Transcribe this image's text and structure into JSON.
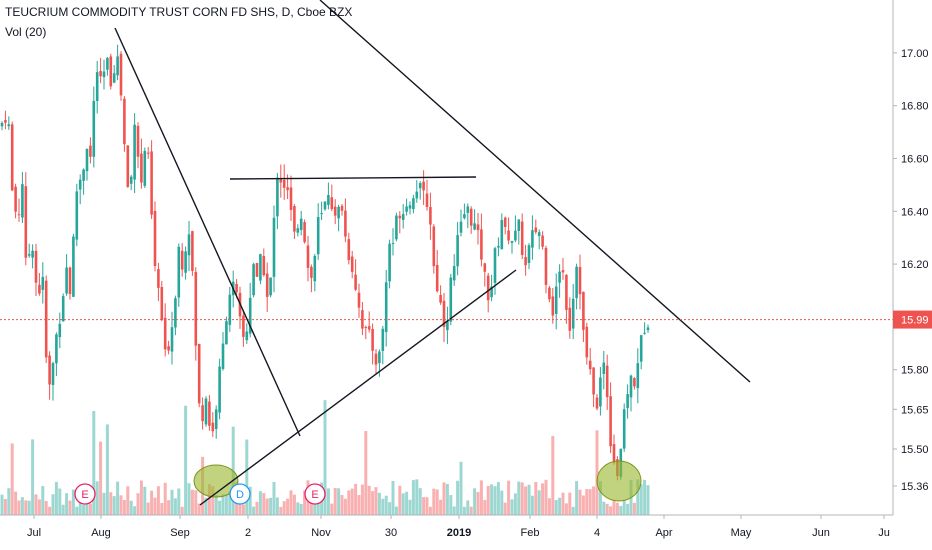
{
  "header": {
    "title": "TEUCRIUM COMMODITY TRUST CORN FD SHS, D, Cboe BZX",
    "volume_label": "Vol (20)"
  },
  "colors": {
    "up": "#26a69a",
    "down": "#ef5350",
    "price_line": "#ef5350",
    "trendline": "#131722",
    "highlight": "#9ab52a"
  },
  "chart_data": {
    "type": "candlestick",
    "ylim": [
      15.25,
      17.2
    ],
    "y_ticks": [
      17.0,
      16.8,
      16.6,
      16.4,
      16.2,
      15.99,
      15.8,
      15.65,
      15.5,
      15.36
    ],
    "y_tick_labels": [
      "17.00",
      "16.80",
      "16.60",
      "16.40",
      "16.20",
      "15.99",
      "15.80",
      "15.65",
      "15.50",
      "15.36"
    ],
    "last_price": 15.99,
    "last_price_label": "15.99",
    "x_labels": [
      "Jul",
      "Aug",
      "Sep",
      "2",
      "Nov",
      "30",
      "2019",
      "Feb",
      "4",
      "Apr",
      "May",
      "Jun",
      "Ju"
    ],
    "x_label_bold": [
      false,
      false,
      false,
      false,
      false,
      false,
      true,
      false,
      false,
      false,
      false,
      false,
      false
    ],
    "events": [
      "E",
      "D",
      "E"
    ],
    "price_path": [
      [
        0,
        16.72
      ],
      [
        8,
        16.78
      ],
      [
        12,
        16.48
      ],
      [
        18,
        16.35
      ],
      [
        22,
        16.55
      ],
      [
        26,
        16.18
      ],
      [
        32,
        16.3
      ],
      [
        38,
        16.05
      ],
      [
        42,
        16.2
      ],
      [
        46,
        15.85
      ],
      [
        50,
        15.72
      ],
      [
        56,
        15.92
      ],
      [
        62,
        16.05
      ],
      [
        66,
        16.2
      ],
      [
        70,
        16.1
      ],
      [
        74,
        16.32
      ],
      [
        78,
        16.55
      ],
      [
        82,
        16.5
      ],
      [
        86,
        16.68
      ],
      [
        90,
        16.58
      ],
      [
        94,
        16.82
      ],
      [
        98,
        16.96
      ],
      [
        102,
        16.84
      ],
      [
        106,
        17.0
      ],
      [
        110,
        16.88
      ],
      [
        114,
        16.95
      ],
      [
        118,
        16.98
      ],
      [
        122,
        16.8
      ],
      [
        126,
        16.55
      ],
      [
        130,
        16.42
      ],
      [
        134,
        16.78
      ],
      [
        138,
        16.62
      ],
      [
        142,
        16.48
      ],
      [
        146,
        16.7
      ],
      [
        150,
        16.5
      ],
      [
        154,
        16.2
      ],
      [
        158,
        16.12
      ],
      [
        162,
        15.98
      ],
      [
        166,
        15.82
      ],
      [
        170,
        15.94
      ],
      [
        174,
        16.0
      ],
      [
        178,
        16.28
      ],
      [
        182,
        16.2
      ],
      [
        186,
        16.28
      ],
      [
        190,
        16.35
      ],
      [
        194,
        16.05
      ],
      [
        198,
        15.68
      ],
      [
        202,
        15.62
      ],
      [
        206,
        15.7
      ],
      [
        210,
        15.58
      ],
      [
        214,
        15.56
      ],
      [
        218,
        15.75
      ],
      [
        222,
        15.85
      ],
      [
        226,
        16.0
      ],
      [
        230,
        16.1
      ],
      [
        234,
        16.12
      ],
      [
        238,
        16.04
      ],
      [
        242,
        15.92
      ],
      [
        246,
        15.92
      ],
      [
        250,
        16.08
      ],
      [
        254,
        16.22
      ],
      [
        258,
        16.1
      ],
      [
        262,
        16.28
      ],
      [
        266,
        16.06
      ],
      [
        270,
        16.1
      ],
      [
        274,
        16.36
      ],
      [
        278,
        16.58
      ],
      [
        282,
        16.5
      ],
      [
        286,
        16.5
      ],
      [
        290,
        16.42
      ],
      [
        294,
        16.3
      ],
      [
        298,
        16.36
      ],
      [
        302,
        16.4
      ],
      [
        306,
        16.25
      ],
      [
        310,
        16.12
      ],
      [
        314,
        16.2
      ],
      [
        318,
        16.36
      ],
      [
        322,
        16.38
      ],
      [
        326,
        16.44
      ],
      [
        330,
        16.5
      ],
      [
        334,
        16.35
      ],
      [
        338,
        16.4
      ],
      [
        342,
        16.42
      ],
      [
        346,
        16.28
      ],
      [
        350,
        16.22
      ],
      [
        354,
        16.16
      ],
      [
        358,
        16.06
      ],
      [
        362,
        15.98
      ],
      [
        366,
        15.94
      ],
      [
        370,
        15.92
      ],
      [
        374,
        15.86
      ],
      [
        378,
        15.82
      ],
      [
        382,
        15.92
      ],
      [
        386,
        16.12
      ],
      [
        390,
        16.3
      ],
      [
        394,
        16.28
      ],
      [
        398,
        16.42
      ],
      [
        402,
        16.38
      ],
      [
        406,
        16.45
      ],
      [
        410,
        16.42
      ],
      [
        414,
        16.48
      ],
      [
        418,
        16.5
      ],
      [
        422,
        16.46
      ],
      [
        426,
        16.45
      ],
      [
        430,
        16.38
      ],
      [
        434,
        16.18
      ],
      [
        438,
        16.1
      ],
      [
        442,
        16.02
      ],
      [
        446,
        15.95
      ],
      [
        450,
        16.12
      ],
      [
        454,
        16.18
      ],
      [
        458,
        16.3
      ],
      [
        462,
        16.35
      ],
      [
        466,
        16.42
      ],
      [
        470,
        16.38
      ],
      [
        474,
        16.35
      ],
      [
        478,
        16.3
      ],
      [
        482,
        16.22
      ],
      [
        486,
        16.12
      ],
      [
        490,
        16.06
      ],
      [
        494,
        16.22
      ],
      [
        498,
        16.28
      ],
      [
        502,
        16.38
      ],
      [
        506,
        16.3
      ],
      [
        510,
        16.32
      ],
      [
        514,
        16.28
      ],
      [
        518,
        16.36
      ],
      [
        522,
        16.26
      ],
      [
        526,
        16.18
      ],
      [
        530,
        16.28
      ],
      [
        534,
        16.32
      ],
      [
        538,
        16.34
      ],
      [
        542,
        16.28
      ],
      [
        546,
        16.15
      ],
      [
        550,
        16.08
      ],
      [
        554,
        16.0
      ],
      [
        558,
        16.18
      ],
      [
        562,
        16.2
      ],
      [
        566,
        16.06
      ],
      [
        570,
        15.96
      ],
      [
        574,
        16.12
      ],
      [
        578,
        16.24
      ],
      [
        582,
        15.98
      ],
      [
        586,
        15.86
      ],
      [
        590,
        15.78
      ],
      [
        594,
        15.72
      ],
      [
        598,
        15.62
      ],
      [
        602,
        15.86
      ],
      [
        606,
        15.78
      ],
      [
        610,
        15.55
      ],
      [
        614,
        15.46
      ],
      [
        618,
        15.4
      ],
      [
        622,
        15.55
      ],
      [
        626,
        15.68
      ],
      [
        630,
        15.78
      ],
      [
        634,
        15.72
      ],
      [
        638,
        15.85
      ],
      [
        642,
        15.92
      ],
      [
        646,
        15.99
      ],
      [
        650,
        15.99
      ]
    ]
  }
}
